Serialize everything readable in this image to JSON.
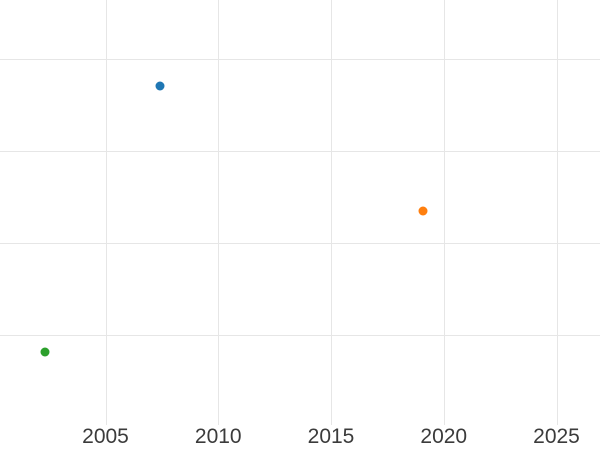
{
  "figure": {
    "background": "#ffffff",
    "grid_color": "#e6e6e6",
    "tick_label_color": "#3b3b3b"
  },
  "chart_data": {
    "type": "scatter",
    "title": "",
    "xlabel": "",
    "ylabel": "",
    "grid": true,
    "legend": "none",
    "x_ticks": [
      {
        "label": "2005",
        "year": 2005
      },
      {
        "label": "2010",
        "year": 2010
      },
      {
        "label": "2015",
        "year": 2015
      },
      {
        "label": "2020",
        "year": 2020
      },
      {
        "label": "2025",
        "year": 2025
      }
    ],
    "xlim": [
      2000.3,
      2026.9
    ],
    "y_axis_note": "y-axis tick labels not visible (figure cropped at left); y values estimated in gridline units measured up from the bottom of the plot area",
    "y_gridline_units": [
      1,
      2,
      3,
      4
    ],
    "ylim_gridline_units": [
      0,
      4.64
    ],
    "series": [
      {
        "name": "blue-point",
        "color": "#1f77b4",
        "points": [
          {
            "x": 2007.4,
            "y": 3.71
          }
        ]
      },
      {
        "name": "orange-point",
        "color": "#ff7f0e",
        "points": [
          {
            "x": 2019.1,
            "y": 2.35
          }
        ]
      },
      {
        "name": "green-point",
        "color": "#2ca02c",
        "points": [
          {
            "x": 2002.3,
            "y": 0.82
          }
        ]
      }
    ],
    "marker_diameter_px": 9
  }
}
